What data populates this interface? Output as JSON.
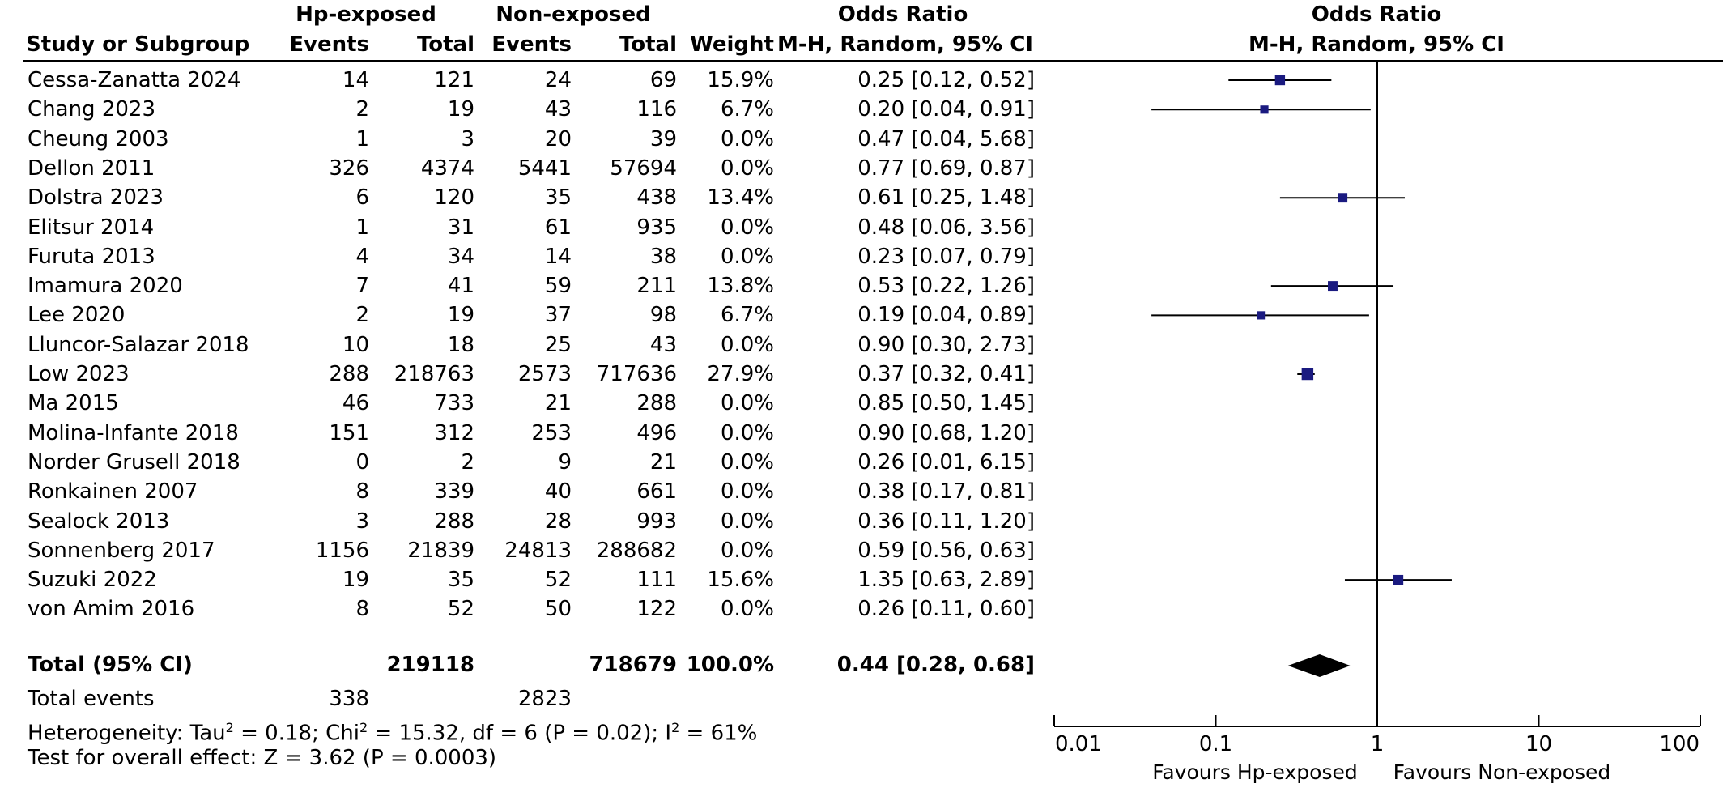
{
  "header": {
    "group1": "Hp-exposed",
    "group2": "Non-exposed",
    "or_title": "Odds Ratio",
    "plot_title": "Odds Ratio",
    "col_study": "Study or Subgroup",
    "col_events1": "Events",
    "col_total1": "Total",
    "col_events2": "Events",
    "col_total2": "Total",
    "col_weight": "Weight",
    "col_or": "M-H, Random, 95% CI",
    "plot_sub": "M-H, Random, 95% CI"
  },
  "rows": [
    {
      "study": "Cessa-Zanatta 2024",
      "e1": "14",
      "t1": "121",
      "e2": "24",
      "t2": "69",
      "weight": "15.9%",
      "ci": "0.25 [0.12, 0.52]"
    },
    {
      "study": "Chang 2023",
      "e1": "2",
      "t1": "19",
      "e2": "43",
      "t2": "116",
      "weight": "6.7%",
      "ci": "0.20 [0.04, 0.91]"
    },
    {
      "study": "Cheung 2003",
      "e1": "1",
      "t1": "3",
      "e2": "20",
      "t2": "39",
      "weight": "0.0%",
      "ci": "0.47 [0.04, 5.68]"
    },
    {
      "study": "Dellon 2011",
      "e1": "326",
      "t1": "4374",
      "e2": "5441",
      "t2": "57694",
      "weight": "0.0%",
      "ci": "0.77 [0.69, 0.87]"
    },
    {
      "study": "Dolstra 2023",
      "e1": "6",
      "t1": "120",
      "e2": "35",
      "t2": "438",
      "weight": "13.4%",
      "ci": "0.61 [0.25, 1.48]"
    },
    {
      "study": "Elitsur 2014",
      "e1": "1",
      "t1": "31",
      "e2": "61",
      "t2": "935",
      "weight": "0.0%",
      "ci": "0.48 [0.06, 3.56]"
    },
    {
      "study": "Furuta 2013",
      "e1": "4",
      "t1": "34",
      "e2": "14",
      "t2": "38",
      "weight": "0.0%",
      "ci": "0.23 [0.07, 0.79]"
    },
    {
      "study": "Imamura 2020",
      "e1": "7",
      "t1": "41",
      "e2": "59",
      "t2": "211",
      "weight": "13.8%",
      "ci": "0.53 [0.22, 1.26]"
    },
    {
      "study": "Lee 2020",
      "e1": "2",
      "t1": "19",
      "e2": "37",
      "t2": "98",
      "weight": "6.7%",
      "ci": "0.19 [0.04, 0.89]"
    },
    {
      "study": "Lluncor-Salazar 2018",
      "e1": "10",
      "t1": "18",
      "e2": "25",
      "t2": "43",
      "weight": "0.0%",
      "ci": "0.90 [0.30, 2.73]"
    },
    {
      "study": "Low 2023",
      "e1": "288",
      "t1": "218763",
      "e2": "2573",
      "t2": "717636",
      "weight": "27.9%",
      "ci": "0.37 [0.32, 0.41]"
    },
    {
      "study": "Ma 2015",
      "e1": "46",
      "t1": "733",
      "e2": "21",
      "t2": "288",
      "weight": "0.0%",
      "ci": "0.85 [0.50, 1.45]"
    },
    {
      "study": "Molina-Infante 2018",
      "e1": "151",
      "t1": "312",
      "e2": "253",
      "t2": "496",
      "weight": "0.0%",
      "ci": "0.90 [0.68, 1.20]"
    },
    {
      "study": "Norder Grusell 2018",
      "e1": "0",
      "t1": "2",
      "e2": "9",
      "t2": "21",
      "weight": "0.0%",
      "ci": "0.26 [0.01, 6.15]"
    },
    {
      "study": "Ronkainen 2007",
      "e1": "8",
      "t1": "339",
      "e2": "40",
      "t2": "661",
      "weight": "0.0%",
      "ci": "0.38 [0.17, 0.81]"
    },
    {
      "study": "Sealock 2013",
      "e1": "3",
      "t1": "288",
      "e2": "28",
      "t2": "993",
      "weight": "0.0%",
      "ci": "0.36 [0.11, 1.20]"
    },
    {
      "study": "Sonnenberg 2017",
      "e1": "1156",
      "t1": "21839",
      "e2": "24813",
      "t2": "288682",
      "weight": "0.0%",
      "ci": "0.59 [0.56, 0.63]"
    },
    {
      "study": "Suzuki 2022",
      "e1": "19",
      "t1": "35",
      "e2": "52",
      "t2": "111",
      "weight": "15.6%",
      "ci": "1.35 [0.63, 2.89]"
    },
    {
      "study": "von Amim 2016",
      "e1": "8",
      "t1": "52",
      "e2": "50",
      "t2": "122",
      "weight": "0.0%",
      "ci": "0.26 [0.11, 0.60]"
    }
  ],
  "total": {
    "label": "Total (95% CI)",
    "t1": "219118",
    "t2": "718679",
    "weight": "100.0%",
    "ci": "0.44 [0.28, 0.68]"
  },
  "total_events": {
    "label": "Total events",
    "e1": "338",
    "e2": "2823"
  },
  "heterogeneity": {
    "prefix": "Heterogeneity: Tau",
    "tau_sup": "2",
    "mid1": " = 0.18; Chi",
    "chi_sup": "2",
    "mid2": " = 15.32, df = 6 (P = 0.02); I",
    "i_sup": "2",
    "suffix": " = 61%"
  },
  "overall_effect": "Test for overall effect: Z = 3.62 (P = 0.0003)",
  "axis": {
    "ticks": [
      "0.01",
      "0.1",
      "1",
      "10",
      "100"
    ],
    "favours_left": "Favours Hp-exposed",
    "favours_right": "Favours Non-exposed"
  },
  "colors": {
    "marker": "#1a1a80",
    "ink": "#000000"
  },
  "chart_data": {
    "type": "forest",
    "x_scale": "log",
    "xlim": [
      0.01,
      100
    ],
    "reference_line": 1,
    "studies": [
      {
        "name": "Cessa-Zanatta 2024",
        "or": 0.25,
        "lo": 0.12,
        "hi": 0.52,
        "weight": 15.9
      },
      {
        "name": "Chang 2023",
        "or": 0.2,
        "lo": 0.04,
        "hi": 0.91,
        "weight": 6.7
      },
      {
        "name": "Cheung 2003",
        "or": 0.47,
        "lo": 0.04,
        "hi": 5.68,
        "weight": 0.0
      },
      {
        "name": "Dellon 2011",
        "or": 0.77,
        "lo": 0.69,
        "hi": 0.87,
        "weight": 0.0
      },
      {
        "name": "Dolstra 2023",
        "or": 0.61,
        "lo": 0.25,
        "hi": 1.48,
        "weight": 13.4
      },
      {
        "name": "Elitsur 2014",
        "or": 0.48,
        "lo": 0.06,
        "hi": 3.56,
        "weight": 0.0
      },
      {
        "name": "Furuta 2013",
        "or": 0.23,
        "lo": 0.07,
        "hi": 0.79,
        "weight": 0.0
      },
      {
        "name": "Imamura 2020",
        "or": 0.53,
        "lo": 0.22,
        "hi": 1.26,
        "weight": 13.8
      },
      {
        "name": "Lee 2020",
        "or": 0.19,
        "lo": 0.04,
        "hi": 0.89,
        "weight": 6.7
      },
      {
        "name": "Lluncor-Salazar 2018",
        "or": 0.9,
        "lo": 0.3,
        "hi": 2.73,
        "weight": 0.0
      },
      {
        "name": "Low 2023",
        "or": 0.37,
        "lo": 0.32,
        "hi": 0.41,
        "weight": 27.9
      },
      {
        "name": "Ma 2015",
        "or": 0.85,
        "lo": 0.5,
        "hi": 1.45,
        "weight": 0.0
      },
      {
        "name": "Molina-Infante 2018",
        "or": 0.9,
        "lo": 0.68,
        "hi": 1.2,
        "weight": 0.0
      },
      {
        "name": "Norder Grusell 2018",
        "or": 0.26,
        "lo": 0.01,
        "hi": 6.15,
        "weight": 0.0
      },
      {
        "name": "Ronkainen 2007",
        "or": 0.38,
        "lo": 0.17,
        "hi": 0.81,
        "weight": 0.0
      },
      {
        "name": "Sealock 2013",
        "or": 0.36,
        "lo": 0.11,
        "hi": 1.2,
        "weight": 0.0
      },
      {
        "name": "Sonnenberg 2017",
        "or": 0.59,
        "lo": 0.56,
        "hi": 0.63,
        "weight": 0.0
      },
      {
        "name": "Suzuki 2022",
        "or": 1.35,
        "lo": 0.63,
        "hi": 2.89,
        "weight": 15.6
      },
      {
        "name": "von Amim 2016",
        "or": 0.26,
        "lo": 0.11,
        "hi": 0.6,
        "weight": 0.0
      }
    ],
    "pooled": {
      "or": 0.44,
      "lo": 0.28,
      "hi": 0.68
    }
  }
}
